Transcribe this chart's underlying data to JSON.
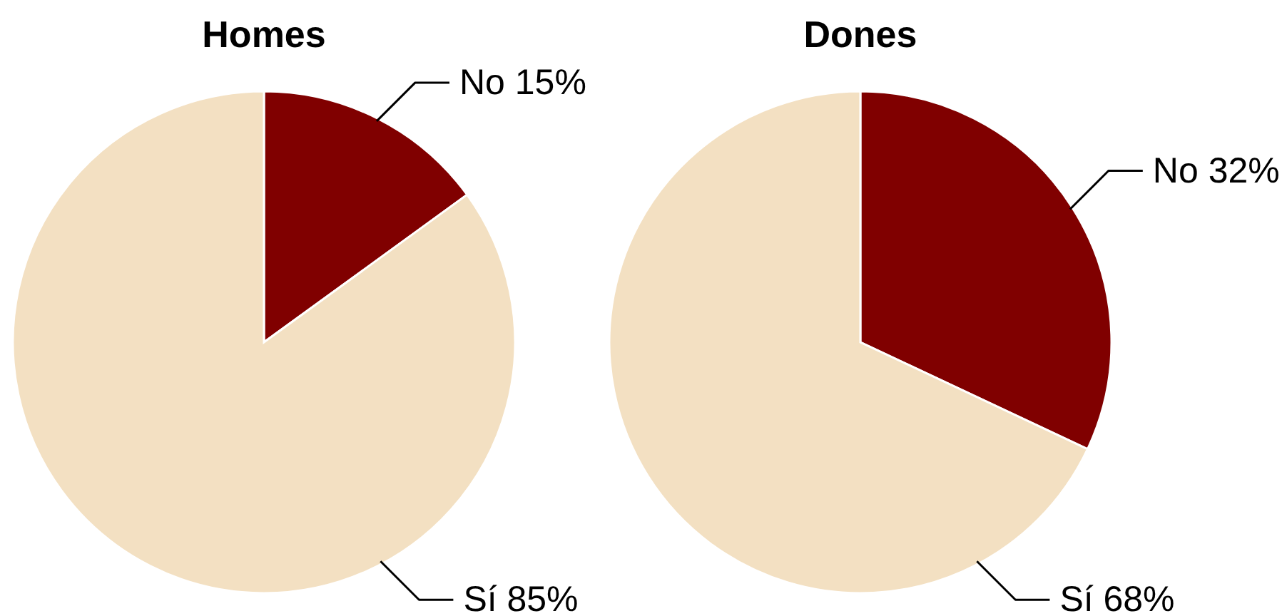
{
  "chart_data": [
    {
      "type": "pie",
      "title": "Homes",
      "categories": [
        "No",
        "Sí"
      ],
      "values": [
        15,
        85
      ],
      "colors": [
        "#800000",
        "#f3e0c2"
      ],
      "value_labels": [
        "15%",
        "85%"
      ]
    },
    {
      "type": "pie",
      "title": "Dones",
      "categories": [
        "No",
        "Sí"
      ],
      "values": [
        32,
        68
      ],
      "colors": [
        "#800000",
        "#f3e0c2"
      ],
      "value_labels": [
        "32%",
        "68%"
      ]
    }
  ]
}
